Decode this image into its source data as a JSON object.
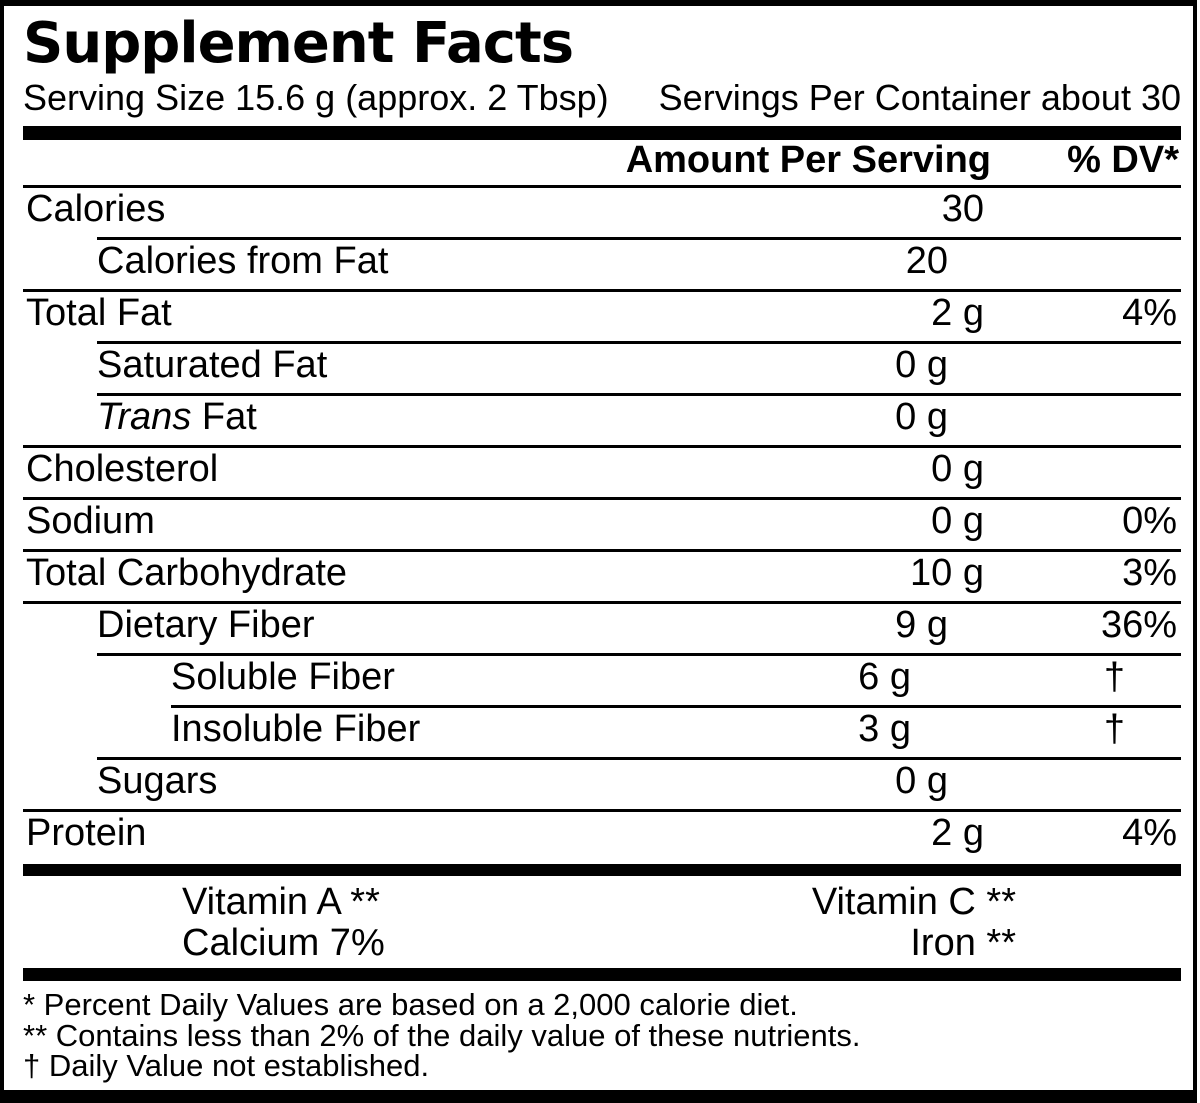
{
  "title": "Supplement Facts",
  "serving": {
    "size": "Serving Size 15.6 g (approx. 2 Tbsp)",
    "per_container": "Servings Per Container about 30"
  },
  "columns": {
    "amount_header": "Amount Per Serving",
    "dv_header": "% DV*"
  },
  "rows": [
    {
      "name": "Calories",
      "name_italic": "",
      "amount": "30",
      "dv": "",
      "level": 0,
      "sep_level": 0
    },
    {
      "name": "Calories from Fat",
      "name_italic": "",
      "amount": "20",
      "dv": "",
      "level": 1,
      "sep_level": 1
    },
    {
      "name": "Total Fat",
      "name_italic": "",
      "amount": "2 g",
      "dv": "4%",
      "level": 0,
      "sep_level": 0
    },
    {
      "name": "Saturated Fat",
      "name_italic": "",
      "amount": "0 g",
      "dv": "",
      "level": 1,
      "sep_level": 1
    },
    {
      "name": " Fat",
      "name_italic": "Trans",
      "amount": "0 g",
      "dv": "",
      "level": 1,
      "sep_level": 1
    },
    {
      "name": "Cholesterol",
      "name_italic": "",
      "amount": "0 g",
      "dv": "",
      "level": 0,
      "sep_level": 0
    },
    {
      "name": "Sodium",
      "name_italic": "",
      "amount": "0 g",
      "dv": "0%",
      "level": 0,
      "sep_level": 0
    },
    {
      "name": "Total Carbohydrate",
      "name_italic": "",
      "amount": "10 g",
      "dv": "3%",
      "level": 0,
      "sep_level": 0
    },
    {
      "name": "Dietary Fiber",
      "name_italic": "",
      "amount": "9 g",
      "dv": "36%",
      "level": 1,
      "sep_level": 0
    },
    {
      "name": "Soluble Fiber",
      "name_italic": "",
      "amount": "6 g",
      "dv": "†",
      "level": 2,
      "sep_level": 1
    },
    {
      "name": "Insoluble Fiber",
      "name_italic": "",
      "amount": "3 g",
      "dv": "†",
      "level": 2,
      "sep_level": 2
    },
    {
      "name": "Sugars",
      "name_italic": "",
      "amount": "0 g",
      "dv": "",
      "level": 1,
      "sep_level": 1
    },
    {
      "name": "Protein",
      "name_italic": "",
      "amount": "2 g",
      "dv": "4%",
      "level": 0,
      "sep_level": 0
    }
  ],
  "vitamins": [
    {
      "left": "Vitamin A **",
      "right": "Vitamin C **"
    },
    {
      "left": "Calcium 7%",
      "right": "Iron **"
    }
  ],
  "footnotes": [
    "* Percent Daily Values are based on a 2,000 calorie diet.",
    "** Contains less than 2% of the daily value of these nutrients.",
    "† Daily Value not established."
  ],
  "colors": {
    "ink": "#000000",
    "paper": "#ffffff"
  }
}
